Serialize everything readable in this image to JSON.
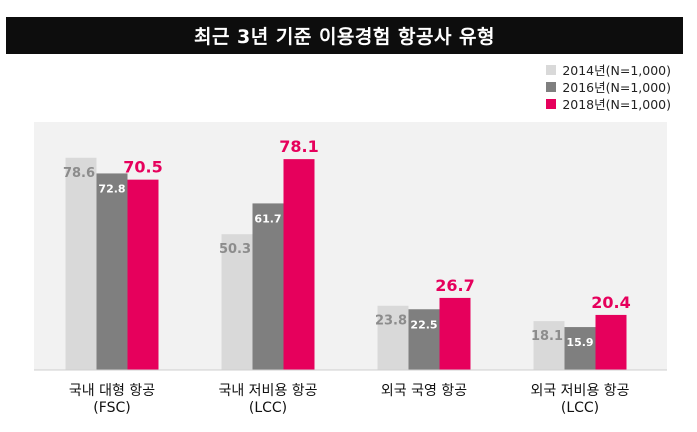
{
  "title": "최근 3년 기준 이용경험 항공사 유형",
  "colors": {
    "2014": "#d9d9d9",
    "2016": "#7f7f7f",
    "2018": "#e6005c",
    "value_2014": "#8c8c8c",
    "value_2016": "#ffffff",
    "value_2018": "#e6005c"
  },
  "chart_data": {
    "type": "bar",
    "title": "최근 3년 기준 이용경험 항공사 유형",
    "categories": [
      {
        "line1": "국내 대형 항공",
        "line2": "(FSC)"
      },
      {
        "line1": "국내 저비용 항공",
        "line2": "(LCC)"
      },
      {
        "line1": "외국 국영 항공",
        "line2": ""
      },
      {
        "line1": "외국 저비용 항공",
        "line2": "(LCC)"
      }
    ],
    "series": [
      {
        "name": "2014년(N=1,000)",
        "values": [
          78.6,
          50.3,
          23.8,
          18.1
        ]
      },
      {
        "name": "2016년(N=1,000)",
        "values": [
          72.8,
          61.7,
          22.5,
          15.9
        ]
      },
      {
        "name": "2018년(N=1,000)",
        "values": [
          70.5,
          78.1,
          26.7,
          20.4
        ]
      }
    ],
    "ylim": [
      0,
      100
    ],
    "grid": false,
    "legend_position": "top-right"
  }
}
